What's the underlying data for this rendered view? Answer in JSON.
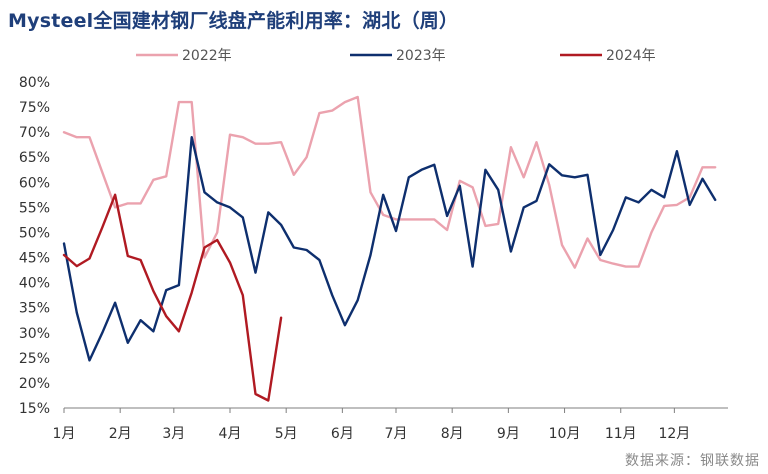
{
  "title": "Mysteel全国建材钢厂线盘产能利用率：湖北（周）",
  "source": "数据来源：钢联数据",
  "chart_data": {
    "type": "line",
    "title": "Mysteel全国建材钢厂线盘产能利用率：湖北（周）",
    "x_tick_labels": [
      "1月",
      "2月",
      "3月",
      "4月",
      "5月",
      "6月",
      "7月",
      "8月",
      "9月",
      "10月",
      "11月",
      "12月"
    ],
    "y_tick_labels": [
      "15%",
      "20%",
      "25%",
      "30%",
      "35%",
      "40%",
      "45%",
      "50%",
      "55%",
      "60%",
      "65%",
      "70%",
      "75%",
      "80%"
    ],
    "ylim": [
      15,
      80
    ],
    "x_unit": "week of year",
    "xlim": [
      1,
      53
    ],
    "legend_position": "top",
    "grid": false,
    "series": [
      {
        "name": "2022年",
        "color": "#eba2ae",
        "points": [
          [
            1,
            70
          ],
          [
            2,
            69
          ],
          [
            3,
            69
          ],
          [
            4,
            62
          ],
          [
            5,
            55
          ],
          [
            6,
            55.8
          ],
          [
            7,
            55.8
          ],
          [
            8,
            60.5
          ],
          [
            9,
            61.2
          ],
          [
            10,
            76
          ],
          [
            11,
            76
          ],
          [
            12,
            45
          ],
          [
            13,
            50
          ],
          [
            14,
            69.5
          ],
          [
            15,
            69
          ],
          [
            16,
            67.7
          ],
          [
            17,
            67.7
          ],
          [
            18,
            68
          ],
          [
            19,
            61.5
          ],
          [
            20,
            65
          ],
          [
            21,
            73.8
          ],
          [
            22,
            74.3
          ],
          [
            23,
            76
          ],
          [
            24,
            77
          ],
          [
            25,
            58
          ],
          [
            26,
            53.5
          ],
          [
            27,
            52.6
          ],
          [
            28,
            52.6
          ],
          [
            29,
            52.6
          ],
          [
            30,
            52.6
          ],
          [
            31,
            50.5
          ],
          [
            32,
            60.3
          ],
          [
            33,
            59
          ],
          [
            34,
            51.3
          ],
          [
            35,
            51.7
          ],
          [
            36,
            67
          ],
          [
            37,
            61
          ],
          [
            38,
            68
          ],
          [
            39,
            59.5
          ],
          [
            40,
            47.5
          ],
          [
            41,
            43
          ],
          [
            42,
            48.8
          ],
          [
            43,
            44.5
          ],
          [
            44,
            43.8
          ],
          [
            45,
            43.2
          ],
          [
            46,
            43.2
          ],
          [
            47,
            50
          ],
          [
            48,
            55.3
          ],
          [
            49,
            55.5
          ],
          [
            50,
            57
          ],
          [
            51,
            63
          ],
          [
            52,
            63
          ]
        ]
      },
      {
        "name": "2023年",
        "color": "#0e2f6e",
        "points": [
          [
            1,
            47.8
          ],
          [
            2,
            34
          ],
          [
            3,
            24.5
          ],
          [
            4,
            30
          ],
          [
            5,
            36
          ],
          [
            6,
            28
          ],
          [
            7,
            32.5
          ],
          [
            8,
            30.3
          ],
          [
            9,
            38.5
          ],
          [
            10,
            39.5
          ],
          [
            11,
            69
          ],
          [
            12,
            58
          ],
          [
            13,
            56
          ],
          [
            14,
            55
          ],
          [
            15,
            53
          ],
          [
            16,
            42
          ],
          [
            17,
            54
          ],
          [
            18,
            51.5
          ],
          [
            19,
            47
          ],
          [
            20,
            46.5
          ],
          [
            21,
            44.5
          ],
          [
            22,
            37.5
          ],
          [
            23,
            31.5
          ],
          [
            24,
            36.5
          ],
          [
            25,
            45.5
          ],
          [
            26,
            57.5
          ],
          [
            27,
            50.3
          ],
          [
            28,
            61
          ],
          [
            29,
            62.5
          ],
          [
            30,
            63.5
          ],
          [
            31,
            53.3
          ],
          [
            32,
            59.3
          ],
          [
            33,
            43.2
          ],
          [
            34,
            62.5
          ],
          [
            35,
            58.5
          ],
          [
            36,
            46.2
          ],
          [
            37,
            55
          ],
          [
            38,
            56.3
          ],
          [
            39,
            63.6
          ],
          [
            40,
            61.4
          ],
          [
            41,
            61
          ],
          [
            42,
            61.5
          ],
          [
            43,
            45.5
          ],
          [
            44,
            50.5
          ],
          [
            45,
            57
          ],
          [
            46,
            56
          ],
          [
            47,
            58.5
          ],
          [
            48,
            57
          ],
          [
            49,
            66.2
          ],
          [
            50,
            55.5
          ],
          [
            51,
            60.7
          ],
          [
            52,
            56.5
          ]
        ]
      },
      {
        "name": "2024年",
        "color": "#b01a22",
        "points": [
          [
            1,
            45.5
          ],
          [
            2,
            43.3
          ],
          [
            3,
            44.8
          ],
          [
            4,
            51
          ],
          [
            5,
            57.5
          ],
          [
            6,
            45.3
          ],
          [
            7,
            44.5
          ],
          [
            8,
            38.3
          ],
          [
            9,
            33.3
          ],
          [
            10,
            30.3
          ],
          [
            11,
            38
          ],
          [
            12,
            47
          ],
          [
            13,
            48.5
          ],
          [
            14,
            44
          ],
          [
            15,
            37.5
          ],
          [
            16,
            17.8
          ],
          [
            17,
            16.5
          ],
          [
            18,
            33
          ]
        ]
      }
    ]
  }
}
